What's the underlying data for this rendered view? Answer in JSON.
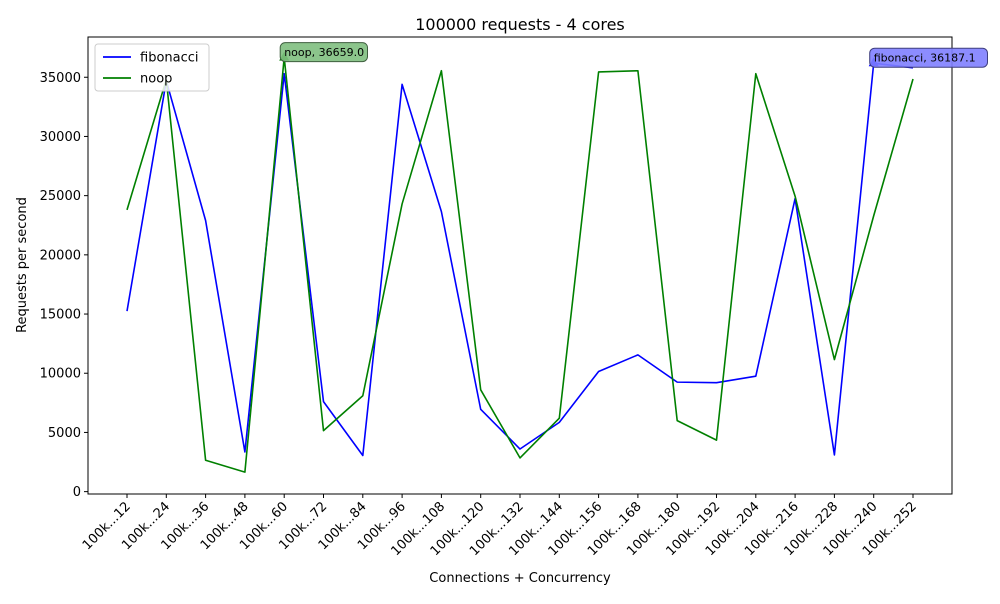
{
  "chart_data": {
    "type": "line",
    "title": "100000 requests - 4 cores",
    "xlabel": "Connections + Concurrency",
    "ylabel": "Requests per second",
    "categories": [
      "100k...12",
      "100k...24",
      "100k...36",
      "100k...48",
      "100k...60",
      "100k...72",
      "100k...84",
      "100k...96",
      "100k...108",
      "100k...120",
      "100k...132",
      "100k...144",
      "100k...156",
      "100k...168",
      "100k...180",
      "100k...192",
      "100k...204",
      "100k...216",
      "100k...228",
      "100k...240",
      "100k...252"
    ],
    "ylim": [
      -200,
      38400
    ],
    "yticks": [
      0,
      5000,
      10000,
      15000,
      20000,
      25000,
      30000,
      35000
    ],
    "grid": false,
    "legend_position": "upper-left",
    "series": [
      {
        "name": "fibonacci",
        "color": "#0000ff",
        "values": [
          15250,
          34700,
          22900,
          3350,
          35300,
          7600,
          3050,
          34400,
          23650,
          6950,
          3600,
          5850,
          10150,
          11550,
          9250,
          9200,
          9750,
          24750,
          3100,
          36187.1,
          35800
        ]
      },
      {
        "name": "noop",
        "color": "#008000",
        "values": [
          23800,
          34800,
          2650,
          1650,
          36659.0,
          5150,
          8100,
          24300,
          35550,
          8600,
          2850,
          6200,
          35450,
          35550,
          6000,
          4350,
          35300,
          24950,
          11150,
          23300,
          34850
        ]
      }
    ],
    "annotations": [
      {
        "series": "noop",
        "index": 4,
        "text": "noop, 36659.0",
        "box_color": "#7fbf7f",
        "edge_color": "#3f5f3f"
      },
      {
        "series": "fibonacci",
        "index": 19,
        "text": "fibonacci, 36187.1",
        "box_color": "#7f7fff",
        "edge_color": "#3f3f7f"
      }
    ]
  }
}
